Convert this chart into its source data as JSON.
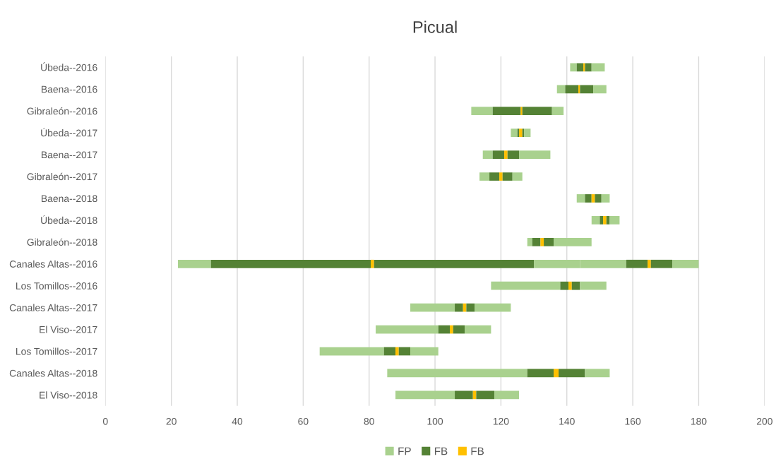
{
  "chart_data": {
    "type": "bar",
    "title": "Picual",
    "orientation": "horizontal",
    "categories": [
      "Úbeda--2016",
      "Baena--2016",
      "Gibraleón--2016",
      "Úbeda--2017",
      "Baena--2017",
      "Gibraleón--2017",
      "Baena--2018",
      "Úbeda--2018",
      "Gibraleón--2018",
      "Canales Altas--2016",
      "Los Tomillos--2016",
      "Canales Altas--2017",
      "El Viso--2017",
      "Los Tomillos--2017",
      "Canales Altas--2018",
      "El Viso--2018"
    ],
    "series": [
      {
        "name": "FP",
        "color": "#a9d18e",
        "base": [
          141,
          137,
          111,
          123,
          114.5,
          113.5,
          143,
          147.5,
          128,
          22,
          117,
          92.5,
          82,
          65,
          85.5,
          88
        ],
        "values": [
          2,
          2.5,
          6.5,
          2,
          3,
          3,
          2.5,
          2.5,
          1.5,
          10,
          21,
          13.5,
          19,
          19.5,
          42.5,
          18
        ]
      },
      {
        "name": "FB",
        "color": "#548235",
        "base": [
          143,
          139.5,
          117.5,
          125,
          117.5,
          116.5,
          145.5,
          150,
          129.5,
          32,
          138,
          106,
          101,
          84.5,
          128,
          106
        ],
        "values": [
          2,
          4,
          8.5,
          0.5,
          3.5,
          3,
          2,
          1,
          2.5,
          48.5,
          2.5,
          2.5,
          3.5,
          3.5,
          8,
          5.5
        ]
      },
      {
        "name": "FB",
        "color": "#ffc000",
        "base": [
          145,
          143.5,
          126,
          125.5,
          121,
          119.5,
          147.5,
          151,
          132,
          80.5,
          140.5,
          108.5,
          104.5,
          88,
          136,
          111.5
        ],
        "values": [
          0.5,
          0.5,
          0.5,
          1,
          1,
          1,
          1,
          1,
          1,
          1,
          1,
          1,
          1,
          1,
          1.5,
          1
        ]
      },
      {
        "color": "#548235",
        "base": [
          145.5,
          144,
          126.5,
          126.5,
          122,
          120.5,
          148.5,
          152,
          133,
          81.5,
          141.5,
          109.5,
          105.5,
          89,
          137.5,
          112.5
        ],
        "values": [
          2,
          4,
          9,
          0.5,
          3.5,
          3,
          2,
          1,
          3,
          48.5,
          2.5,
          2.5,
          3.5,
          3.5,
          8,
          5.5
        ]
      },
      {
        "color": "#a9d18e",
        "base": [
          147.5,
          148,
          135.5,
          127,
          125.5,
          123.5,
          150.5,
          153,
          136,
          130,
          144,
          112,
          109,
          92.5,
          145.5,
          118
        ],
        "values": [
          4,
          4,
          3.5,
          2,
          9.5,
          3,
          2.5,
          3,
          11.5,
          14,
          8,
          11,
          8,
          8.5,
          7.5,
          7.5
        ]
      },
      {
        "color": "#a9d18e",
        "base": [
          null,
          null,
          null,
          null,
          null,
          null,
          null,
          null,
          null,
          144,
          null,
          null,
          null,
          null,
          null,
          null
        ],
        "values": [
          null,
          null,
          null,
          null,
          null,
          null,
          null,
          null,
          null,
          14,
          null,
          null,
          null,
          null,
          null,
          null
        ]
      },
      {
        "color": "#548235",
        "base": [
          null,
          null,
          null,
          null,
          null,
          null,
          null,
          null,
          null,
          158,
          null,
          null,
          null,
          null,
          null,
          null
        ],
        "values": [
          null,
          null,
          null,
          null,
          null,
          null,
          null,
          null,
          null,
          6.5,
          null,
          null,
          null,
          null,
          null,
          null
        ]
      },
      {
        "color": "#ffc000",
        "base": [
          null,
          null,
          null,
          null,
          null,
          null,
          null,
          null,
          null,
          164.5,
          null,
          null,
          null,
          null,
          null,
          null
        ],
        "values": [
          null,
          null,
          null,
          null,
          null,
          null,
          null,
          null,
          null,
          1,
          null,
          null,
          null,
          null,
          null,
          null
        ]
      },
      {
        "color": "#548235",
        "base": [
          null,
          null,
          null,
          null,
          null,
          null,
          null,
          null,
          null,
          165.5,
          null,
          null,
          null,
          null,
          null,
          null
        ],
        "values": [
          null,
          null,
          null,
          null,
          null,
          null,
          null,
          null,
          null,
          6.5,
          null,
          null,
          null,
          null,
          null,
          null
        ]
      },
      {
        "color": "#a9d18e",
        "base": [
          null,
          null,
          null,
          null,
          null,
          null,
          null,
          null,
          null,
          172,
          null,
          null,
          null,
          null,
          null,
          null
        ],
        "values": [
          null,
          null,
          null,
          null,
          null,
          null,
          null,
          null,
          null,
          8,
          null,
          null,
          null,
          null,
          null,
          null
        ]
      }
    ],
    "xlim": [
      0,
      200
    ],
    "xticks": [
      0,
      20,
      40,
      60,
      80,
      100,
      120,
      140,
      160,
      180,
      200
    ],
    "grid": "x",
    "legend": "bottom"
  }
}
